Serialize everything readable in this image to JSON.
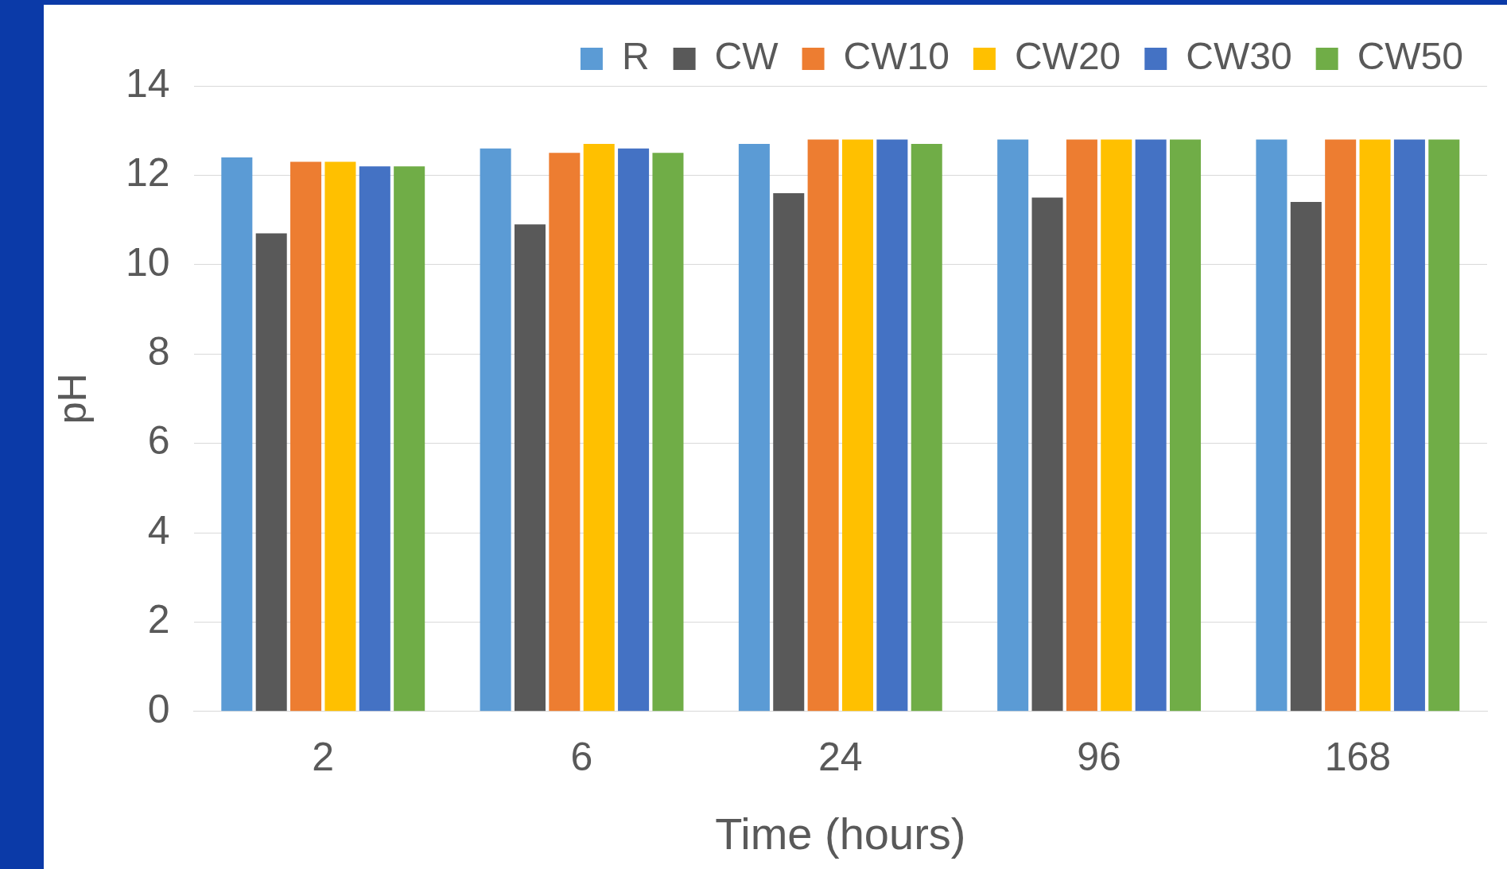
{
  "chart_data": {
    "type": "bar",
    "xlabel": "Time (hours)",
    "ylabel": "pH",
    "categories": [
      "2",
      "6",
      "24",
      "96",
      "168"
    ],
    "series": [
      {
        "name": "R",
        "color": "#5b9bd5",
        "values": [
          12.4,
          12.6,
          12.7,
          12.8,
          12.8
        ]
      },
      {
        "name": "CW",
        "color": "#595959",
        "values": [
          10.7,
          10.9,
          11.6,
          11.5,
          11.4
        ]
      },
      {
        "name": "CW10",
        "color": "#ed7d31",
        "values": [
          12.3,
          12.5,
          12.8,
          12.8,
          12.8
        ]
      },
      {
        "name": "CW20",
        "color": "#ffc000",
        "values": [
          12.3,
          12.7,
          12.8,
          12.8,
          12.8
        ]
      },
      {
        "name": "CW30",
        "color": "#4472c4",
        "values": [
          12.2,
          12.6,
          12.8,
          12.8,
          12.8
        ]
      },
      {
        "name": "CW50",
        "color": "#70ad47",
        "values": [
          12.2,
          12.5,
          12.7,
          12.8,
          12.8
        ]
      }
    ],
    "ylim": [
      0,
      14
    ],
    "yticks": [
      0,
      2,
      4,
      6,
      8,
      10,
      12,
      14
    ],
    "grid": "y",
    "legend": "top right"
  }
}
